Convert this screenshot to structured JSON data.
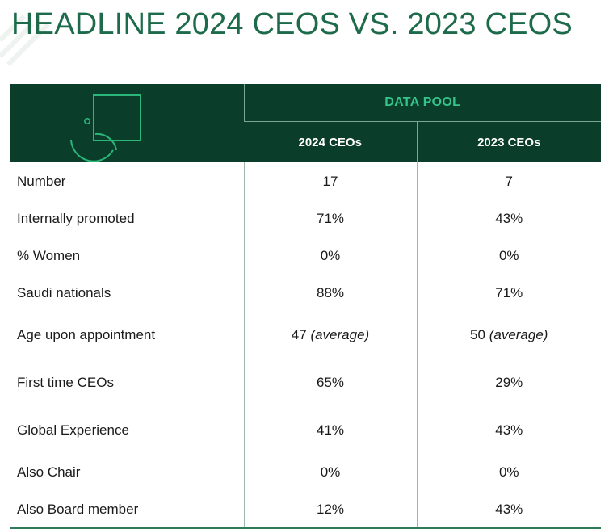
{
  "title": "HEADLINE 2024 CEOS VS. 2023 CEOS",
  "table": {
    "group_header": "DATA POOL",
    "columns": [
      "2024 CEOs",
      "2023 CEOs"
    ],
    "rows": [
      {
        "label": "Number",
        "v2024": "17",
        "v2023": "7"
      },
      {
        "label": "Internally promoted",
        "v2024": "71%",
        "v2023": "43%"
      },
      {
        "label": "% Women",
        "v2024": "0%",
        "v2023": "0%"
      },
      {
        "label": "Saudi nationals",
        "v2024": "88%",
        "v2023": "71%"
      },
      {
        "label": "Age upon appointment",
        "v2024": "47",
        "v2024_note": "(average)",
        "v2023": "50",
        "v2023_note": "(average)"
      },
      {
        "label": "First time CEOs",
        "v2024": "65%",
        "v2023": "29%"
      },
      {
        "label": "Global Experience",
        "v2024": "41%",
        "v2023": "43%"
      },
      {
        "label": "Also Chair",
        "v2024": "0%",
        "v2023": "0%"
      },
      {
        "label": "Also Board member",
        "v2024": "12%",
        "v2023": "43%"
      }
    ]
  },
  "colors": {
    "title": "#1d6b4a",
    "header_bg": "#0a3d2a",
    "group_header_text": "#34c48a",
    "logo_stroke": "#2bb67a"
  },
  "icons": [
    "brand-logo-icon"
  ]
}
